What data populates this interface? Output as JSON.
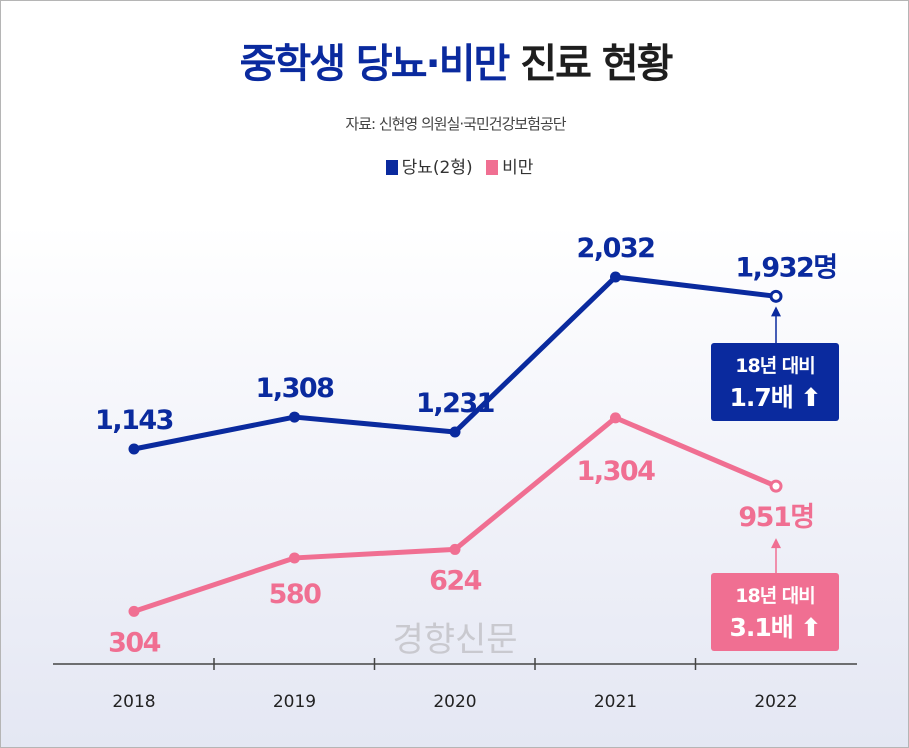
{
  "chart_data": {
    "type": "line",
    "title_part1": "중학생 당뇨·비만",
    "title_part2": "진료 현황",
    "source": "자료: 신현영 의원실·국민건강보험공단",
    "categories": [
      "2018",
      "2019",
      "2020",
      "2021",
      "2022"
    ],
    "series": [
      {
        "name": "당뇨(2형)",
        "color": "#0a2a9e",
        "values": [
          1143,
          1308,
          1231,
          2032,
          1932
        ],
        "labels": [
          "1,143",
          "1,308",
          "1,231",
          "2,032",
          "1,932명"
        ]
      },
      {
        "name": "비만",
        "color": "#f06f92",
        "values": [
          304,
          580,
          624,
          1304,
          951
        ],
        "labels": [
          "304",
          "580",
          "624",
          "1,304",
          "951명"
        ]
      }
    ],
    "annotations": [
      {
        "line1": "18년 대비",
        "line2": "1.7배",
        "icon": "arrow-up-icon",
        "color": "#0a2a9e"
      },
      {
        "line1": "18년 대비",
        "line2": "3.1배",
        "icon": "arrow-up-icon",
        "color": "#f06f92"
      }
    ],
    "legend_position": "top-center",
    "grid": false,
    "watermark": "경향신문"
  }
}
